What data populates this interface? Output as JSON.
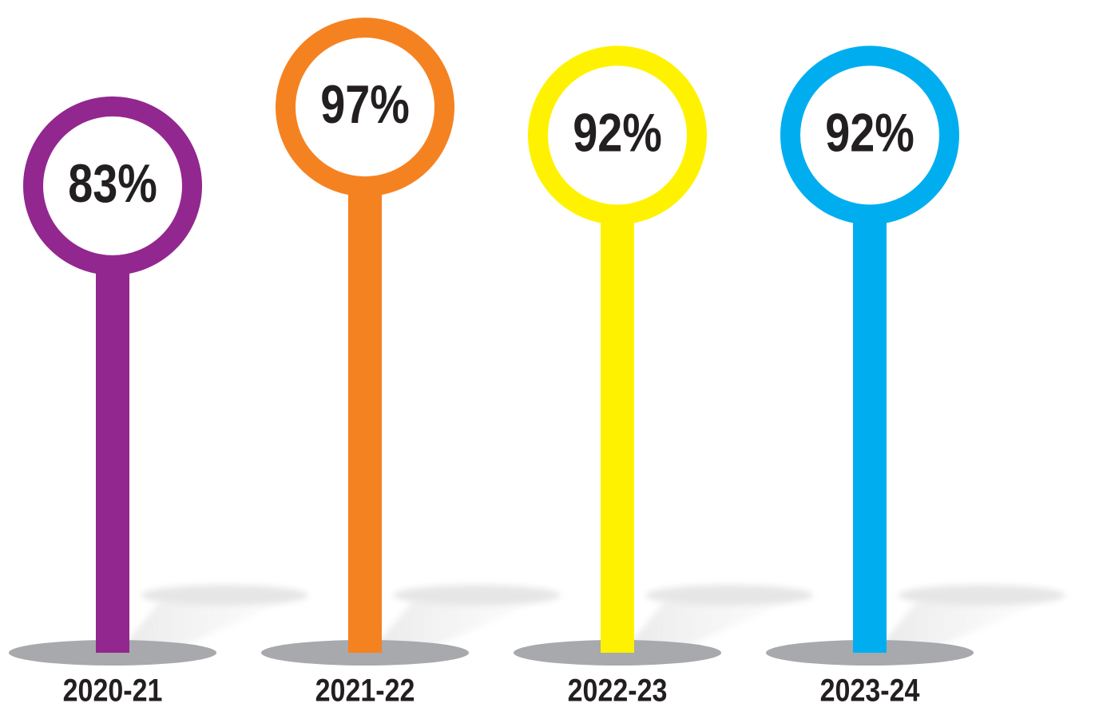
{
  "chart_data": {
    "type": "lollipop",
    "categories": [
      "2020-21",
      "2021-22",
      "2022-23",
      "2023-24"
    ],
    "values": [
      83,
      97,
      92,
      92
    ],
    "value_labels": [
      "83%",
      "97%",
      "92%",
      "92%"
    ],
    "colors": [
      "#92278f",
      "#f58220",
      "#fff200",
      "#00aeef"
    ]
  }
}
